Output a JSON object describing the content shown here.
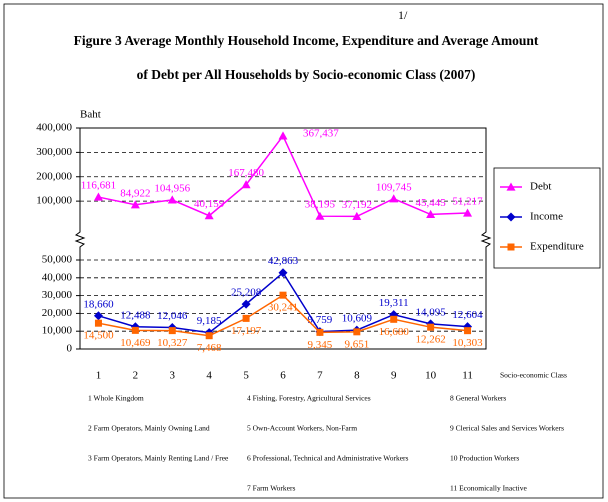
{
  "chart_data": {
    "type": "line",
    "footnote_mark": "1/",
    "title": [
      "Figure  3   Average Monthly Household Income, Expenditure and Average Amount",
      "of Debt  per All Households by Socio-economic Class (2007)"
    ],
    "y_axis_label": "Baht",
    "x_axis_label": "Socio-economic Class",
    "categories": [
      "1",
      "2",
      "3",
      "4",
      "5",
      "6",
      "7",
      "8",
      "9",
      "10",
      "11"
    ],
    "ylim": [
      0,
      50000
    ],
    "yticks": [
      0,
      {
        "value": 10000,
        "label": "10,000"
      },
      {
        "value": 20000,
        "label": "20,000"
      },
      {
        "value": 30000,
        "label": "30,000"
      },
      {
        "value": 40000,
        "label": "40,000"
      },
      {
        "value": 50000,
        "label": "50,000"
      }
    ],
    "y2lim": [
      0,
      400000
    ],
    "y2ticks": [
      {
        "value": 100000,
        "label": "100,000"
      },
      {
        "value": 200000,
        "label": "200,000"
      },
      {
        "value": 300000,
        "label": "300,000"
      },
      {
        "value": 400000,
        "label": "400,000"
      }
    ],
    "grid": true,
    "legend": "right",
    "series": [
      {
        "name": "Debt",
        "color": "#ff00ff",
        "marker": "triangle",
        "axis": "y2",
        "values": [
          116681,
          84922,
          104956,
          40159,
          167480,
          367437,
          38195,
          37192,
          109745,
          45445,
          51217
        ],
        "value_labels": [
          "116,681",
          "84,922",
          "104,956",
          "40,159",
          "167,480",
          "367,437",
          "38,195",
          "37,192",
          "109,745",
          "45,445",
          "51,217"
        ]
      },
      {
        "name": "Income",
        "color": "#0000cc",
        "marker": "diamond",
        "values": [
          18660,
          12488,
          12046,
          9185,
          25208,
          42863,
          9759,
          10609,
          19311,
          14095,
          12604
        ],
        "value_labels": [
          "18,660",
          "12,488",
          "12,046",
          "9,185",
          "25,208",
          "42,863",
          "9,759",
          "10,609",
          "19,311",
          "14,095",
          "12,604"
        ]
      },
      {
        "name": "Expenditure",
        "color": "#ff6600",
        "marker": "square",
        "values": [
          14500,
          10469,
          10327,
          7468,
          17197,
          30241,
          9345,
          9651,
          16680,
          12262,
          10303
        ],
        "value_labels": [
          "14,500",
          "10,469",
          "10,327",
          "7,468",
          "17,197",
          "30,241",
          "9,345",
          "9,651",
          "16,680",
          "12,262",
          "10,303"
        ]
      }
    ],
    "notes": [
      "1  Whole Kingdom",
      "2 Farm Operators, Mainly Owning Land",
      "3  Farm Operators, Mainly Renting Land / Free",
      "4  Fishing, Forestry, Agricultural Services",
      "5  Own-Account Workers, Non-Farm",
      "6  Professional, Technical and Administrative Workers",
      "7  Farm Workers",
      "8  General Workers",
      "9  Clerical Sales and Services Workers",
      "10  Production Workers",
      "11  Economically Inactive"
    ]
  }
}
